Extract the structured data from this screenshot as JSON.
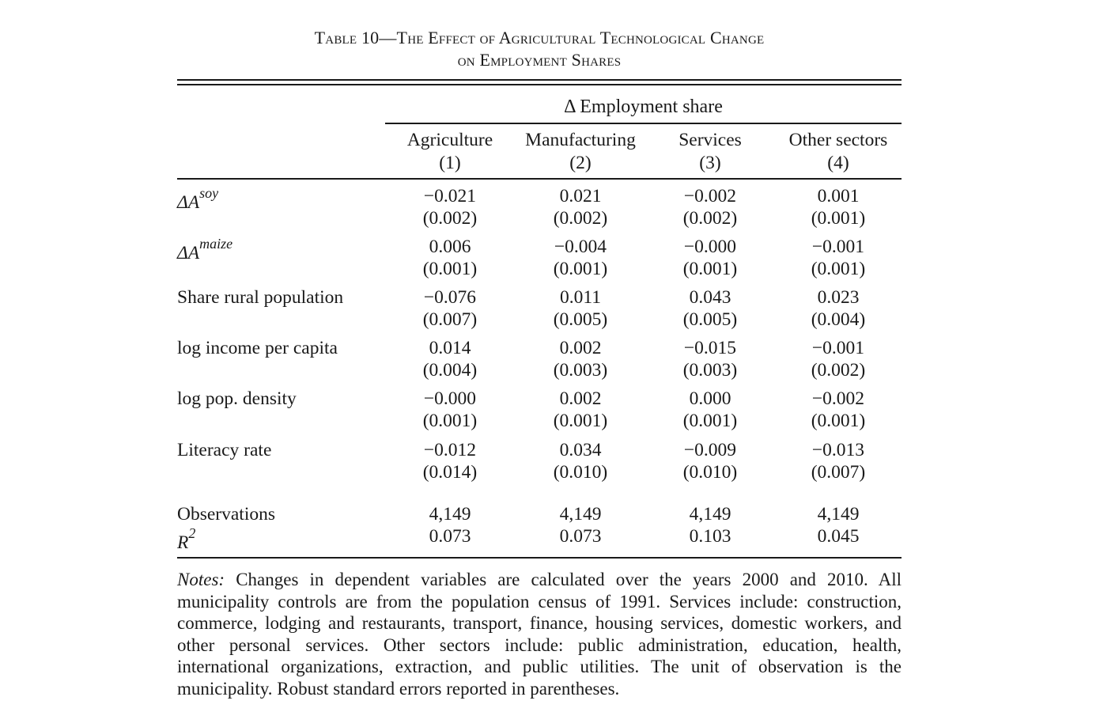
{
  "title": {
    "line1": "Table 10—The Effect of Agricultural Technological Change",
    "line2": "on Employment Shares"
  },
  "header": {
    "group_label": "Δ Employment share",
    "columns": [
      {
        "name": "Agriculture",
        "number": "(1)"
      },
      {
        "name": "Manufacturing",
        "number": "(2)"
      },
      {
        "name": "Services",
        "number": "(3)"
      },
      {
        "name": "Other sectors",
        "number": "(4)"
      }
    ]
  },
  "rows": [
    {
      "label_main": "ΔA",
      "label_sup": "soy",
      "coef": [
        "−0.021",
        "0.021",
        "−0.002",
        "0.001"
      ],
      "se": [
        "(0.002)",
        "(0.002)",
        "(0.002)",
        "(0.001)"
      ]
    },
    {
      "label_main": "ΔA",
      "label_sup": "maize",
      "coef": [
        "0.006",
        "−0.004",
        "−0.000",
        "−0.001"
      ],
      "se": [
        "(0.001)",
        "(0.001)",
        "(0.001)",
        "(0.001)"
      ]
    },
    {
      "label_main": "Share rural population",
      "label_sup": "",
      "coef": [
        "−0.076",
        "0.011",
        "0.043",
        "0.023"
      ],
      "se": [
        "(0.007)",
        "(0.005)",
        "(0.005)",
        "(0.004)"
      ]
    },
    {
      "label_main": "log income per capita",
      "label_sup": "",
      "coef": [
        "0.014",
        "0.002",
        "−0.015",
        "−0.001"
      ],
      "se": [
        "(0.004)",
        "(0.003)",
        "(0.003)",
        "(0.002)"
      ]
    },
    {
      "label_main": "log pop. density",
      "label_sup": "",
      "coef": [
        "−0.000",
        "0.002",
        "0.000",
        "−0.002"
      ],
      "se": [
        "(0.001)",
        "(0.001)",
        "(0.001)",
        "(0.001)"
      ]
    },
    {
      "label_main": "Literacy rate",
      "label_sup": "",
      "coef": [
        "−0.012",
        "0.034",
        "−0.009",
        "−0.013"
      ],
      "se": [
        "(0.014)",
        "(0.010)",
        "(0.010)",
        "(0.007)"
      ]
    }
  ],
  "stats": [
    {
      "label_main": "Observations",
      "label_sup": "",
      "values": [
        "4,149",
        "4,149",
        "4,149",
        "4,149"
      ]
    },
    {
      "label_main": "R",
      "label_sup": "2",
      "values": [
        "0.073",
        "0.073",
        "0.103",
        "0.045"
      ]
    }
  ],
  "notes": {
    "label": "Notes:",
    "text": "Changes in dependent variables are calculated over the years 2000 and 2010. All municipality controls are from the population census of 1991. Services include: construction, commerce, lodging and restaurants, transport, finance, housing services, domestic workers, and other personal services. Other sectors include: public administration, education, health, international organizations, extraction, and public utilities. The unit of observation is the municipality. Robust standard errors reported in parentheses."
  }
}
